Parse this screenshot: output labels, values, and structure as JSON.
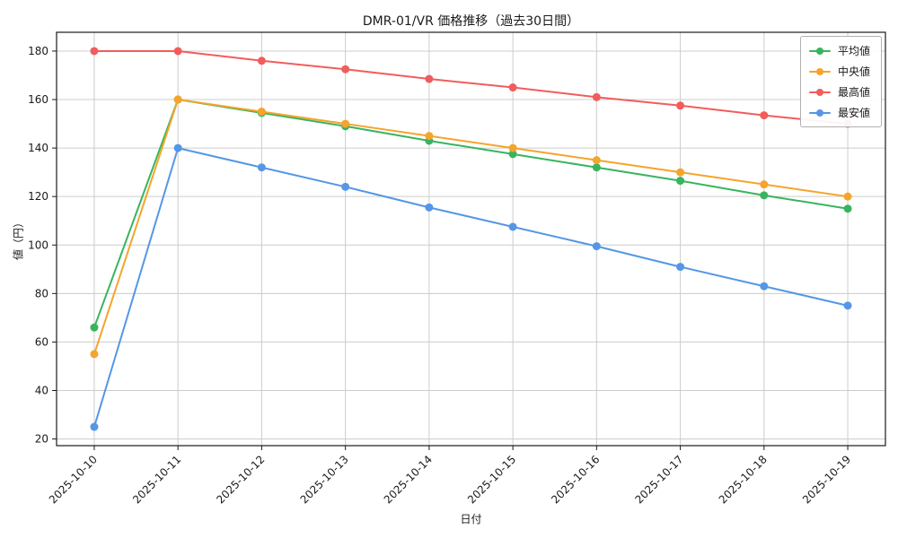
{
  "title": "DMR-01/VR 価格推移（過去30日間）",
  "chart_data": {
    "type": "line",
    "title": "DMR-01/VR 価格推移（過去30日間）",
    "xlabel": "日付",
    "ylabel": "値（円）",
    "x": [
      "2025-10-10",
      "2025-10-11",
      "2025-10-12",
      "2025-10-13",
      "2025-10-14",
      "2025-10-15",
      "2025-10-16",
      "2025-10-17",
      "2025-10-18",
      "2025-10-19"
    ],
    "series": [
      {
        "name": "平均値",
        "color": "#38b45e",
        "values": [
          66,
          160,
          154.5,
          149,
          143,
          137.5,
          132,
          126.5,
          120.5,
          115
        ]
      },
      {
        "name": "中央値",
        "color": "#f5a42c",
        "values": [
          55,
          160,
          155,
          150,
          145,
          140,
          135,
          130,
          125,
          120
        ]
      },
      {
        "name": "最高値",
        "color": "#f25c5c",
        "values": [
          180,
          180,
          176,
          172.5,
          168.5,
          165,
          161,
          157.5,
          153.5,
          150
        ]
      },
      {
        "name": "最安値",
        "color": "#5596e6",
        "values": [
          25,
          140,
          132,
          124,
          115.5,
          107.5,
          99.5,
          91,
          83,
          75
        ]
      }
    ],
    "yticks": [
      20,
      40,
      60,
      80,
      100,
      120,
      140,
      160,
      180
    ],
    "ylim": [
      17.25,
      187.75
    ],
    "xlim": [
      -0.45,
      9.45
    ],
    "grid": true,
    "grid_color": "#cccccc",
    "legend_position": "upper right",
    "xtick_rotation": 45
  }
}
